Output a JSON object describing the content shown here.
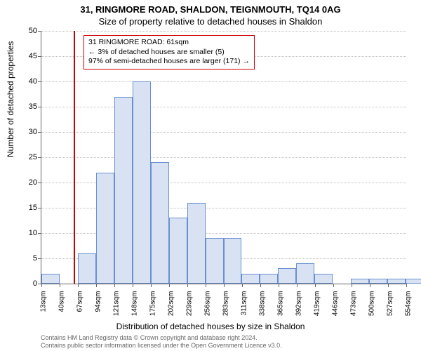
{
  "titles": {
    "line1": "31, RINGMORE ROAD, SHALDON, TEIGNMOUTH, TQ14 0AG",
    "line2": "Size of property relative to detached houses in Shaldon"
  },
  "annotation": {
    "line1": "31 RINGMORE ROAD: 61sqm",
    "line2": "← 3% of detached houses are smaller (5)",
    "line3": "97% of semi-detached houses are larger (171) →"
  },
  "axes": {
    "ylabel": "Number of detached properties",
    "xlabel": "Distribution of detached houses by size in Shaldon",
    "ylim": [
      0,
      50
    ],
    "ytick_step": 5
  },
  "chart": {
    "type": "histogram",
    "bar_fill": "#d9e2f3",
    "bar_border": "#6a8fd0",
    "grid_color": "#bfbfbf",
    "reference_line_x": 61,
    "reference_line_color": "#cc0000",
    "x_ticks": [
      13,
      40,
      67,
      94,
      121,
      148,
      175,
      202,
      229,
      256,
      283,
      311,
      338,
      365,
      392,
      419,
      446,
      473,
      500,
      527,
      554
    ],
    "bin_start": 13,
    "bin_width": 27,
    "values": [
      2,
      0,
      6,
      22,
      37,
      40,
      24,
      13,
      16,
      9,
      9,
      2,
      2,
      3,
      4,
      2,
      0,
      1,
      1,
      1,
      1
    ]
  },
  "footer": {
    "line1": "Contains HM Land Registry data © Crown copyright and database right 2024.",
    "line2": "Contains public sector information licensed under the Open Government Licence v3.0."
  }
}
